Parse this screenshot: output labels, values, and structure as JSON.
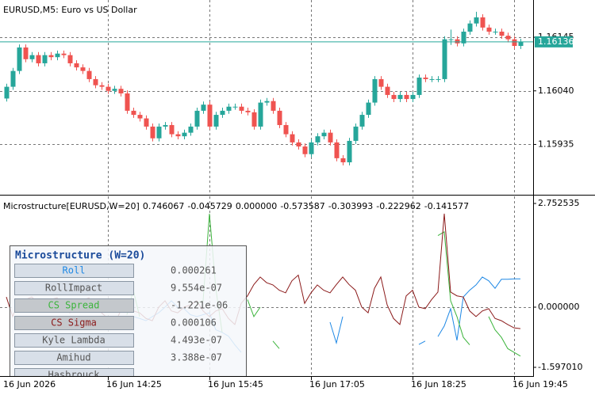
{
  "chart_data": [
    {
      "type": "candlestick",
      "title": "EURUSD,M5:  Euro vs US Dollar",
      "categories": [
        "16 Jun 2026",
        null,
        null,
        null,
        null,
        null,
        null,
        null,
        null,
        null,
        null,
        null,
        null,
        null,
        null,
        null,
        "16 Jun 14:25",
        null,
        null,
        null,
        null,
        null,
        null,
        null,
        null,
        null,
        null,
        null,
        null,
        null,
        null,
        null,
        "16 Jun 15:45",
        null,
        null,
        null,
        null,
        null,
        null,
        null,
        null,
        null,
        null,
        null,
        null,
        null,
        null,
        null,
        "16 Jun 17:05",
        null,
        null,
        null,
        null,
        null,
        null,
        null,
        null,
        null,
        null,
        null,
        null,
        null,
        null,
        null,
        "16 Jun 18:25",
        null,
        null,
        null,
        null,
        null,
        null,
        null,
        null,
        null,
        null,
        null,
        null,
        null,
        null,
        null,
        "16 Jun 19:45",
        null
      ],
      "open": [
        1.16025,
        1.16048,
        1.16079,
        1.16125,
        1.16102,
        1.1611,
        1.16094,
        1.1611,
        1.16106,
        1.16113,
        1.1611,
        1.16094,
        1.16086,
        1.16079,
        1.16063,
        1.16051,
        1.16048,
        1.1604,
        1.16044,
        1.16035,
        1.16001,
        1.15993,
        1.15986,
        1.1597,
        1.15947,
        1.1597,
        1.15973,
        1.15955,
        1.15951,
        1.15958,
        1.1597,
        1.16001,
        1.16013,
        1.1597,
        1.15993,
        1.16001,
        1.16009,
        1.16009,
        1.16001,
        1.15998,
        1.1597,
        1.16017,
        1.1602,
        1.16001,
        1.15973,
        1.15955,
        1.15939,
        1.15931,
        1.15916,
        1.15939,
        1.15951,
        1.15958,
        1.15939,
        1.15908,
        1.159,
        1.15942,
        1.1597,
        1.15993,
        1.16017,
        1.16063,
        1.16048,
        1.16032,
        1.16024,
        1.16032,
        1.16024,
        1.16032,
        1.16066,
        1.16063,
        1.16063,
        1.16063,
        1.16141,
        1.16141,
        1.16133,
        1.16156,
        1.16172,
        1.16184,
        1.16164,
        1.16156,
        1.16156,
        1.16148,
        1.16141,
        1.16128
      ],
      "high": [
        1.16054,
        1.16085,
        1.16131,
        1.16131,
        1.16116,
        1.16116,
        1.16116,
        1.16116,
        1.16119,
        1.16119,
        1.16116,
        1.161,
        1.16092,
        1.16085,
        1.16069,
        1.16057,
        1.16054,
        1.1605,
        1.1605,
        1.16041,
        1.16007,
        1.15999,
        1.15992,
        1.15976,
        1.15976,
        1.15979,
        1.15979,
        1.15961,
        1.15964,
        1.15976,
        1.16007,
        1.16019,
        1.16019,
        1.15999,
        1.16007,
        1.16015,
        1.16015,
        1.16015,
        1.16007,
        1.16004,
        1.16023,
        1.16026,
        1.16026,
        1.16007,
        1.15979,
        1.15961,
        1.15945,
        1.15937,
        1.15945,
        1.15957,
        1.15964,
        1.15964,
        1.15945,
        1.15914,
        1.15948,
        1.15976,
        1.15999,
        1.16023,
        1.16069,
        1.16069,
        1.16054,
        1.16038,
        1.16038,
        1.16038,
        1.16038,
        1.16072,
        1.16072,
        1.16069,
        1.16069,
        1.16147,
        1.1616,
        1.16147,
        1.16162,
        1.16178,
        1.16195,
        1.1619,
        1.1617,
        1.16162,
        1.16162,
        1.16154,
        1.16147,
        1.16142
      ],
      "low": [
        1.16019,
        1.16042,
        1.16073,
        1.16096,
        1.16096,
        1.16088,
        1.16088,
        1.161,
        1.161,
        1.16104,
        1.16088,
        1.1608,
        1.16073,
        1.16057,
        1.16045,
        1.16042,
        1.16034,
        1.16034,
        1.16029,
        1.15995,
        1.15987,
        1.1598,
        1.15964,
        1.15941,
        1.15941,
        1.15964,
        1.15949,
        1.15945,
        1.15945,
        1.15952,
        1.15964,
        1.15995,
        1.15964,
        1.15964,
        1.15987,
        1.15995,
        1.16003,
        1.15995,
        1.15992,
        1.15964,
        1.15964,
        1.16011,
        1.15995,
        1.15967,
        1.15949,
        1.15933,
        1.15925,
        1.1591,
        1.1591,
        1.15933,
        1.15945,
        1.15933,
        1.15902,
        1.15894,
        1.15894,
        1.15936,
        1.15964,
        1.15987,
        1.16011,
        1.16042,
        1.16026,
        1.16018,
        1.16018,
        1.16018,
        1.16018,
        1.16026,
        1.16057,
        1.16057,
        1.16057,
        1.16057,
        1.1613,
        1.16127,
        1.16127,
        1.1615,
        1.16166,
        1.16158,
        1.1615,
        1.1615,
        1.16142,
        1.16135,
        1.16122,
        1.16122
      ],
      "close": [
        1.16048,
        1.16079,
        1.16125,
        1.16102,
        1.1611,
        1.16094,
        1.1611,
        1.16106,
        1.16113,
        1.1611,
        1.16094,
        1.16086,
        1.16079,
        1.16063,
        1.16051,
        1.16048,
        1.1604,
        1.16044,
        1.16035,
        1.16001,
        1.15993,
        1.15986,
        1.1597,
        1.15947,
        1.1597,
        1.15973,
        1.15955,
        1.15951,
        1.15958,
        1.1597,
        1.16001,
        1.16013,
        1.1597,
        1.15993,
        1.16001,
        1.16009,
        1.16009,
        1.16001,
        1.15998,
        1.1597,
        1.16017,
        1.1602,
        1.16001,
        1.15973,
        1.15955,
        1.15939,
        1.15931,
        1.15916,
        1.15939,
        1.15951,
        1.15958,
        1.15939,
        1.15908,
        1.159,
        1.15942,
        1.1597,
        1.15993,
        1.16017,
        1.16063,
        1.16048,
        1.16032,
        1.16024,
        1.16032,
        1.16024,
        1.16032,
        1.16066,
        1.16063,
        1.16063,
        1.16063,
        1.16141,
        1.16141,
        1.16133,
        1.16156,
        1.16172,
        1.16184,
        1.16164,
        1.16156,
        1.16156,
        1.16148,
        1.16141,
        1.16128,
        1.16136
      ],
      "up_color": "#26a69a",
      "down_color": "#ef5350",
      "ylim": [
        1.15838,
        1.16218
      ],
      "yticks": [
        1.16145,
        {
          "value": 1.1604,
          "label": "1.16040"
        },
        1.15935
      ],
      "current_price": 1.16136,
      "current_price_color": "#26a69a",
      "grid": true
    },
    {
      "type": "line",
      "title": "Microstructure[EURUSD,W=20]",
      "header_values": [
        "0.746067",
        "-0.045729",
        "0.000000",
        "-0.573587",
        "-0.303993",
        "-0.222962",
        "-0.141577"
      ],
      "series": [
        {
          "name": "Roll",
          "color": "#1e88e5",
          "values": [
            null,
            null,
            null,
            null,
            null,
            null,
            null,
            null,
            null,
            null,
            null,
            null,
            null,
            null,
            null,
            null,
            null,
            null,
            null,
            null,
            -0.25,
            -0.3,
            -0.36,
            -0.25,
            -0.15,
            0.0,
            0.17,
            0.0,
            -0.04,
            -0.2,
            -0.25,
            -0.2,
            -0.15,
            -0.6,
            -0.67,
            -0.77,
            -1.0,
            -1.2,
            null,
            null,
            null,
            null,
            null,
            null,
            null,
            null,
            null,
            null,
            null,
            null,
            null,
            -0.4,
            -0.95,
            -0.25,
            null,
            null,
            null,
            null,
            null,
            null,
            null,
            null,
            null,
            null,
            null,
            -0.99,
            -0.9,
            null,
            -0.78,
            -0.5,
            -0.04,
            -0.88,
            0.27,
            0.45,
            0.59,
            0.8,
            0.7,
            0.5,
            0.74,
            0.74,
            0.75,
            0.75
          ]
        },
        {
          "name": "CS Spread",
          "color": "#3cb43c",
          "values": [
            null,
            null,
            null,
            null,
            null,
            null,
            null,
            null,
            null,
            null,
            null,
            null,
            null,
            null,
            null,
            null,
            null,
            null,
            null,
            -0.2,
            0.45,
            -0.25,
            null,
            null,
            null,
            null,
            null,
            null,
            null,
            null,
            0.1,
            0.17,
            2.48,
            0.5,
            -0.67,
            null,
            null,
            null,
            0.2,
            -0.25,
            0.0,
            null,
            -0.9,
            -1.1,
            null,
            null,
            null,
            null,
            null,
            null,
            null,
            null,
            null,
            null,
            null,
            null,
            null,
            null,
            null,
            null,
            null,
            null,
            null,
            null,
            null,
            null,
            null,
            null,
            1.9,
            2.0,
            0.17,
            -0.25,
            -0.8,
            -1.0,
            null,
            null,
            -0.25,
            -0.6,
            -0.8,
            -1.1,
            -1.2,
            -1.3
          ]
        },
        {
          "name": "CS Sigma",
          "color": "#8b1a1a",
          "values": [
            0.27,
            -0.25,
            0.17,
            0.2,
            0.27,
            0.1,
            0.06,
            0.2,
            0.25,
            -0.05,
            -0.15,
            0.1,
            0.17,
            0.25,
            0.0,
            -0.15,
            -0.3,
            -0.46,
            -0.1,
            -0.04,
            -0.1,
            -0.15,
            -0.3,
            -0.36,
            0.0,
            0.17,
            -0.1,
            -0.15,
            0.0,
            0.06,
            0.17,
            -0.1,
            -0.25,
            -0.1,
            -0.04,
            -0.3,
            -0.46,
            0.1,
            0.3,
            0.6,
            0.8,
            0.65,
            0.59,
            0.45,
            0.38,
            0.7,
            0.85,
            0.1,
            0.38,
            0.59,
            0.45,
            0.38,
            0.6,
            0.8,
            0.6,
            0.45,
            0.0,
            -0.15,
            0.5,
            0.8,
            0.06,
            -0.3,
            -0.46,
            0.3,
            0.45,
            0.0,
            -0.04,
            0.2,
            0.4,
            2.48,
            0.4,
            0.3,
            0.27,
            -0.1,
            -0.25,
            -0.1,
            -0.04,
            -0.3,
            -0.36,
            -0.46,
            -0.55,
            -0.57
          ]
        }
      ],
      "ylim": [
        -1.59701,
        2.752535
      ],
      "yticks": [
        2.752535,
        {
          "value": 0,
          "label": "0.000000"
        },
        {
          "value": -1.59701,
          "label": "-1.597010"
        }
      ],
      "grid": true
    }
  ],
  "panel": {
    "title": "Microstructure  (W=20)",
    "rows": [
      {
        "label": "Roll",
        "value": "0.000261",
        "color": "#1e88e5",
        "active": false
      },
      {
        "label": "RollImpact",
        "value": "9.554e-07",
        "color": "#555555",
        "active": false
      },
      {
        "label": "CS Spread",
        "value": "-1.221e-06",
        "color": "#3cb43c",
        "active": true
      },
      {
        "label": "CS Sigma",
        "value": "0.000106",
        "color": "#8b1a1a",
        "active": true
      },
      {
        "label": "Kyle Lambda",
        "value": "4.493e-07",
        "color": "#555555",
        "active": false
      },
      {
        "label": "Amihud",
        "value": "3.388e-07",
        "color": "#555555",
        "active": false
      },
      {
        "label": "Hasbrouck",
        "color": "#555555",
        "active": false
      }
    ]
  }
}
